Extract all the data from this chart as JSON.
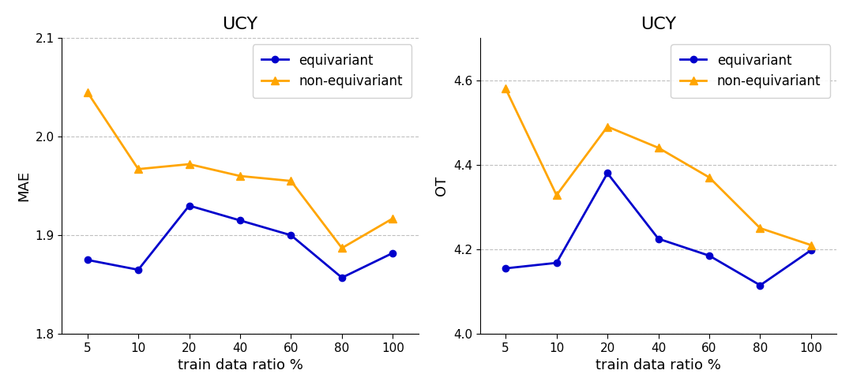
{
  "x_positions": [
    0,
    1,
    2,
    3,
    4,
    5,
    6
  ],
  "x_labels": [
    "5",
    "10",
    "20",
    "40",
    "60",
    "80",
    "100"
  ],
  "mae_equivariant": [
    1.875,
    1.865,
    1.93,
    1.915,
    1.9,
    1.857,
    1.882
  ],
  "mae_non_equivariant": [
    2.045,
    1.967,
    1.972,
    1.96,
    1.955,
    1.887,
    1.917
  ],
  "ot_equivariant": [
    4.155,
    4.168,
    4.38,
    4.225,
    4.185,
    4.115,
    4.198
  ],
  "ot_non_equivariant": [
    4.58,
    4.328,
    4.49,
    4.44,
    4.37,
    4.25,
    4.21
  ],
  "title": "UCY",
  "xlabel": "train data ratio %",
  "ylabel_left": "MAE",
  "ylabel_right": "OT",
  "ylim_left": [
    1.8,
    2.1
  ],
  "ylim_right": [
    4.0,
    4.7
  ],
  "yticks_left": [
    1.8,
    1.9,
    2.0,
    2.1
  ],
  "yticks_right": [
    4.0,
    4.2,
    4.4,
    4.6
  ],
  "color_equivariant": "#0000cc",
  "color_non_equivariant": "#ffa500",
  "legend_labels": [
    "equivariant",
    "non-equivariant"
  ],
  "background_color": "#ffffff",
  "grid_color": "#b0b0b0"
}
